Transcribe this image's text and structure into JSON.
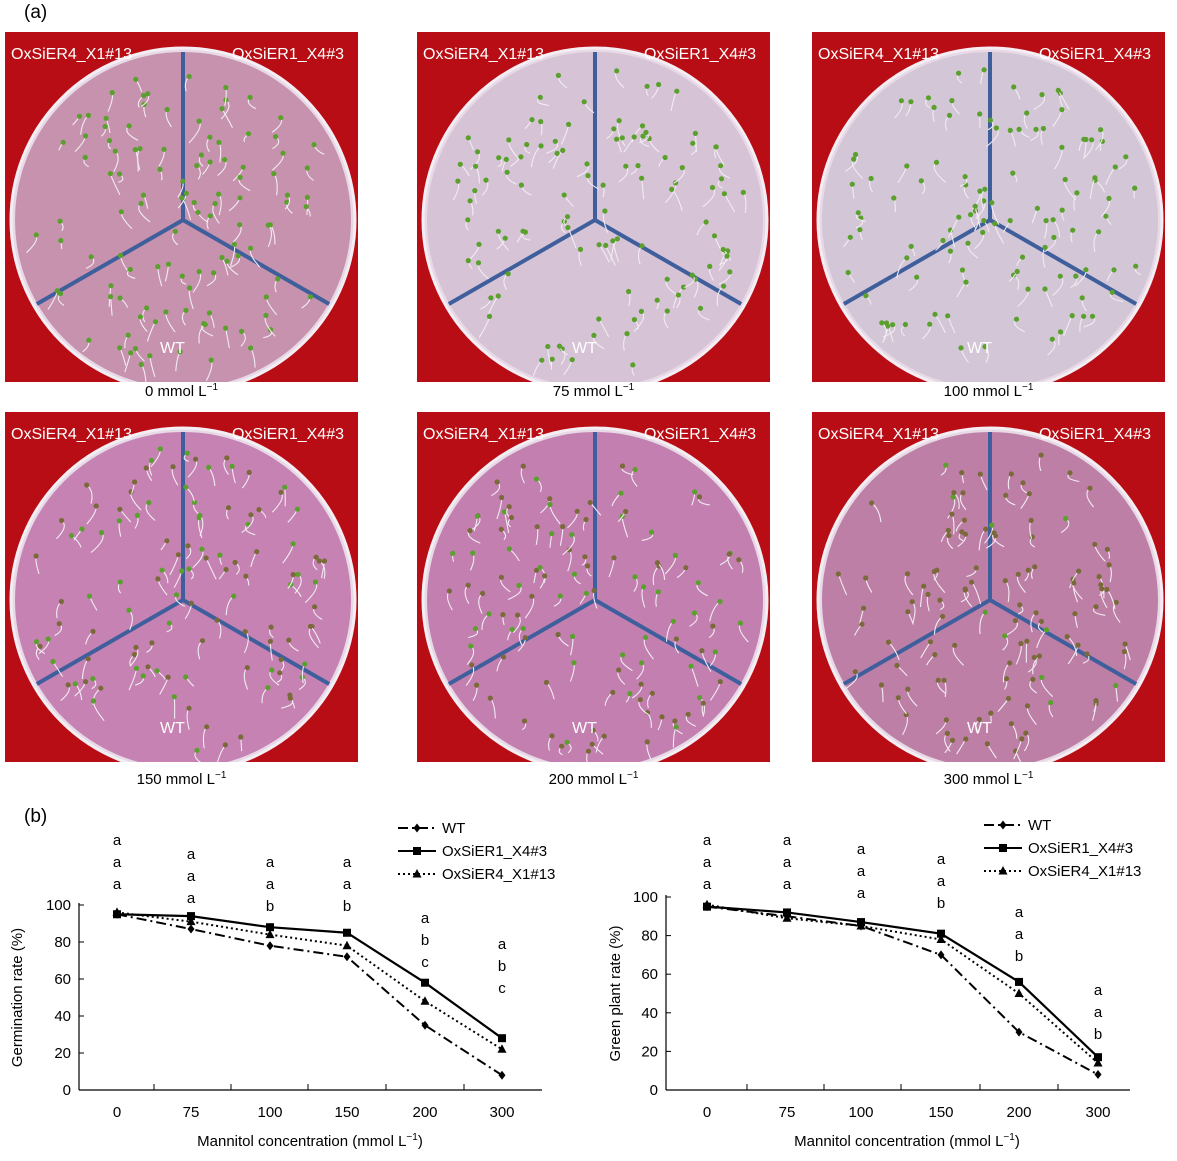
{
  "panel_a": {
    "letter": "(a)",
    "plates": [
      {
        "conc_value": "0",
        "label_tl": "OxSiER4_X1#13",
        "label_tr": "OxSiER1_X4#3",
        "label_bottom": "WT"
      },
      {
        "conc_value": "75",
        "label_tl": "OxSiER4_X1#13",
        "label_tr": "OxSiER1_X4#3",
        "label_bottom": "WT"
      },
      {
        "conc_value": "100",
        "label_tl": "OxSiER4_X1#13",
        "label_tr": "OxSiER1_X4#3",
        "label_bottom": "WT"
      },
      {
        "conc_value": "150",
        "label_tl": "OxSiER4_X1#13",
        "label_tr": "OxSiER1_X4#3",
        "label_bottom": "WT"
      },
      {
        "conc_value": "200",
        "label_tl": "OxSiER4_X1#13",
        "label_tr": "OxSiER1_X4#3",
        "label_bottom": "WT"
      },
      {
        "conc_value": "300",
        "label_tl": "OxSiER4_X1#13",
        "label_tr": "OxSiER1_X4#3",
        "label_bottom": "WT"
      }
    ],
    "conc_unit": "mmol L",
    "conc_exponent": "−1",
    "colors": {
      "background": "#b80d14",
      "medium": "#c88aa6",
      "divider": "#3f5f9c",
      "seedling": "#5aa02c"
    }
  },
  "panel_b": {
    "letter": "(b)"
  },
  "chart_data": [
    {
      "type": "line",
      "xlabel": "Mannitol concentration (mmol L",
      "xlabel_exponent": "−1",
      "xlabel_close": ")",
      "ylabel": "Germination rate (%)",
      "categories": [
        "0",
        "75",
        "100",
        "150",
        "200",
        "300"
      ],
      "ylim": [
        0,
        100
      ],
      "yticks": [
        0,
        20,
        40,
        60,
        80,
        100
      ],
      "grid": false,
      "legend_position": "top-right",
      "series": [
        {
          "name": "WT",
          "marker": "diamond",
          "dash": "dashdot",
          "values": [
            95,
            87,
            78,
            72,
            35,
            8
          ]
        },
        {
          "name": "OxSiER1_X4#3",
          "marker": "square",
          "dash": "solid",
          "values": [
            95,
            94,
            88,
            85,
            58,
            28
          ]
        },
        {
          "name": "OxSiER4_X1#13",
          "marker": "triangle",
          "dash": "dotted",
          "values": [
            96,
            91,
            84,
            78,
            48,
            22
          ]
        }
      ],
      "significance": [
        [
          "a",
          "a",
          "a"
        ],
        [
          "a",
          "a",
          "a"
        ],
        [
          "a",
          "a",
          "b"
        ],
        [
          "a",
          "a",
          "b"
        ],
        [
          "a",
          "b",
          "c"
        ],
        [
          "a",
          "b",
          "c"
        ]
      ]
    },
    {
      "type": "line",
      "xlabel": "Mannitol concentration (mmol L",
      "xlabel_exponent": "−1",
      "xlabel_close": ")",
      "ylabel": "Green plant rate (%)",
      "categories": [
        "0",
        "75",
        "100",
        "150",
        "200",
        "300"
      ],
      "ylim": [
        0,
        100
      ],
      "yticks": [
        0,
        20,
        40,
        60,
        80,
        100
      ],
      "grid": false,
      "legend_position": "top-right",
      "series": [
        {
          "name": "WT",
          "marker": "diamond",
          "dash": "dashdot",
          "values": [
            95,
            90,
            85,
            70,
            30,
            8
          ]
        },
        {
          "name": "OxSiER1_X4#3",
          "marker": "square",
          "dash": "solid",
          "values": [
            95,
            92,
            87,
            81,
            56,
            17
          ]
        },
        {
          "name": "OxSiER4_X1#13",
          "marker": "triangle",
          "dash": "dotted",
          "values": [
            96,
            89,
            85,
            78,
            50,
            14
          ]
        }
      ],
      "significance": [
        [
          "a",
          "a",
          "a"
        ],
        [
          "a",
          "a",
          "a"
        ],
        [
          "a",
          "a",
          "a"
        ],
        [
          "a",
          "a",
          "b"
        ],
        [
          "a",
          "a",
          "b"
        ],
        [
          "a",
          "a",
          "b"
        ]
      ]
    }
  ]
}
